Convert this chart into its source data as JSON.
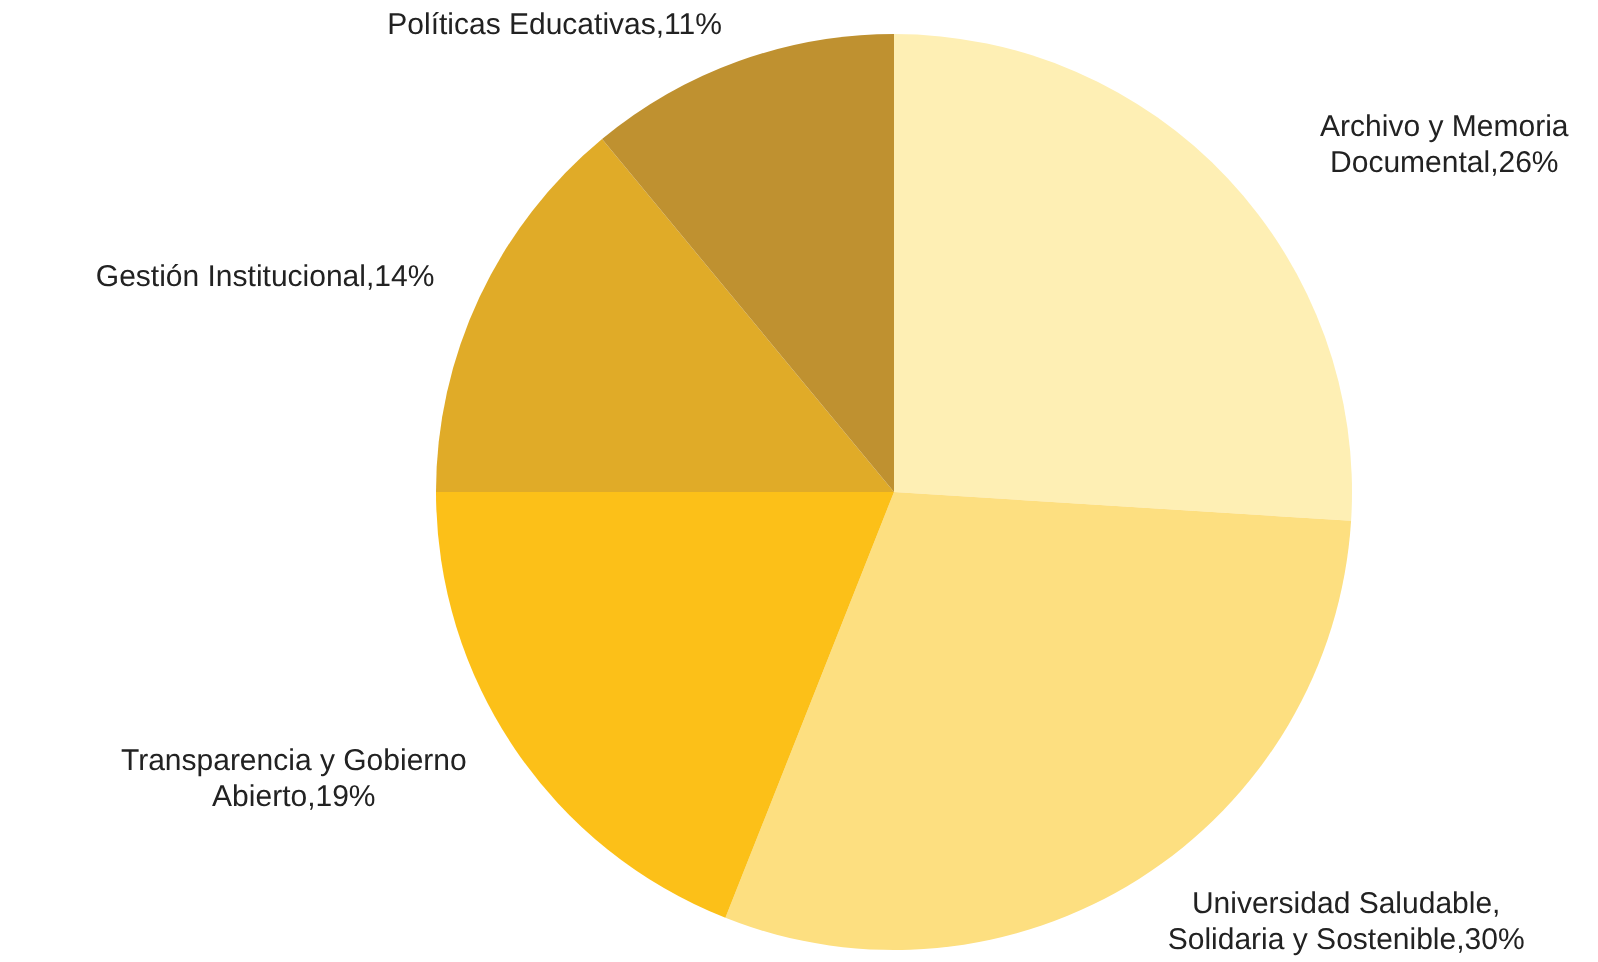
{
  "chart_data": {
    "type": "pie",
    "categories": [
      "Archivo y Memoria Documental",
      "Universidad Saludable, Solidaria y Sostenible",
      "Transparencia y Gobierno Abierto",
      "Gestión Institucional",
      "Políticas Educativas"
    ],
    "values": [
      26,
      30,
      19,
      14,
      11
    ],
    "value_labels": [
      "26%",
      "30%",
      "19%",
      "14%",
      "11%"
    ],
    "colors": [
      "#feefb4",
      "#fddf80",
      "#fcc018",
      "#e0ab28",
      "#bf9130"
    ]
  }
}
